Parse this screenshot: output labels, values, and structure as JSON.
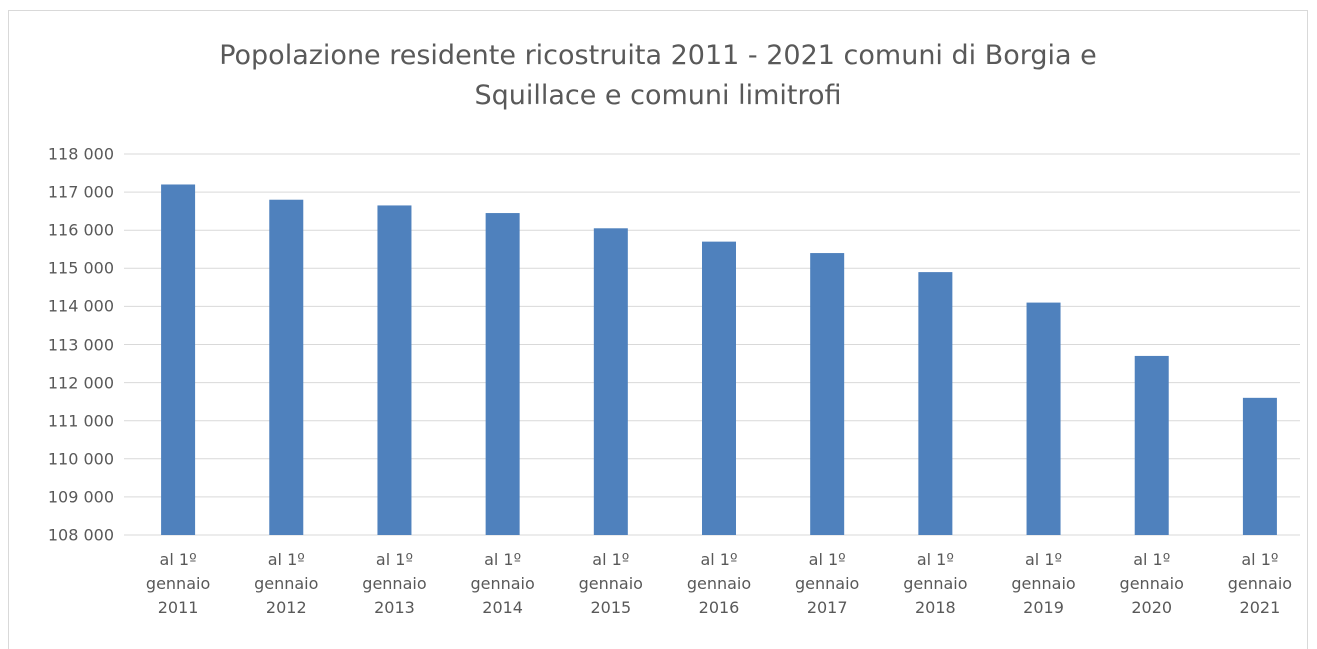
{
  "chart_data": {
    "type": "bar",
    "title": "Popolazione residente ricostruita 2011 - 2021  comuni di Borgia e Squillace e comuni limitrofi",
    "categories": [
      "al 1º gennaio 2011",
      "al 1º gennaio 2012",
      "al 1º gennaio 2013",
      "al 1º gennaio 2014",
      "al 1º gennaio 2015",
      "al 1º gennaio 2016",
      "al 1º gennaio 2017",
      "al 1º gennaio 2018",
      "al 1º gennaio 2019",
      "al 1º gennaio 2020",
      "al 1º gennaio 2021"
    ],
    "values": [
      117200,
      116800,
      116650,
      116450,
      116050,
      115700,
      115400,
      114900,
      114100,
      112700,
      111600
    ],
    "color": "#4f81bd",
    "ylim": [
      108000,
      118000
    ],
    "yticks": [
      {
        "value": 108000,
        "label": "108 000"
      },
      {
        "value": 109000,
        "label": "109 000"
      },
      {
        "value": 110000,
        "label": "110 000"
      },
      {
        "value": 111000,
        "label": "111 000"
      },
      {
        "value": 112000,
        "label": "112 000"
      },
      {
        "value": 113000,
        "label": "113 000"
      },
      {
        "value": 114000,
        "label": "114 000"
      },
      {
        "value": 115000,
        "label": "115 000"
      },
      {
        "value": 116000,
        "label": "116 000"
      },
      {
        "value": 117000,
        "label": "117 000"
      },
      {
        "value": 118000,
        "label": "118 000"
      }
    ],
    "grid": true
  }
}
